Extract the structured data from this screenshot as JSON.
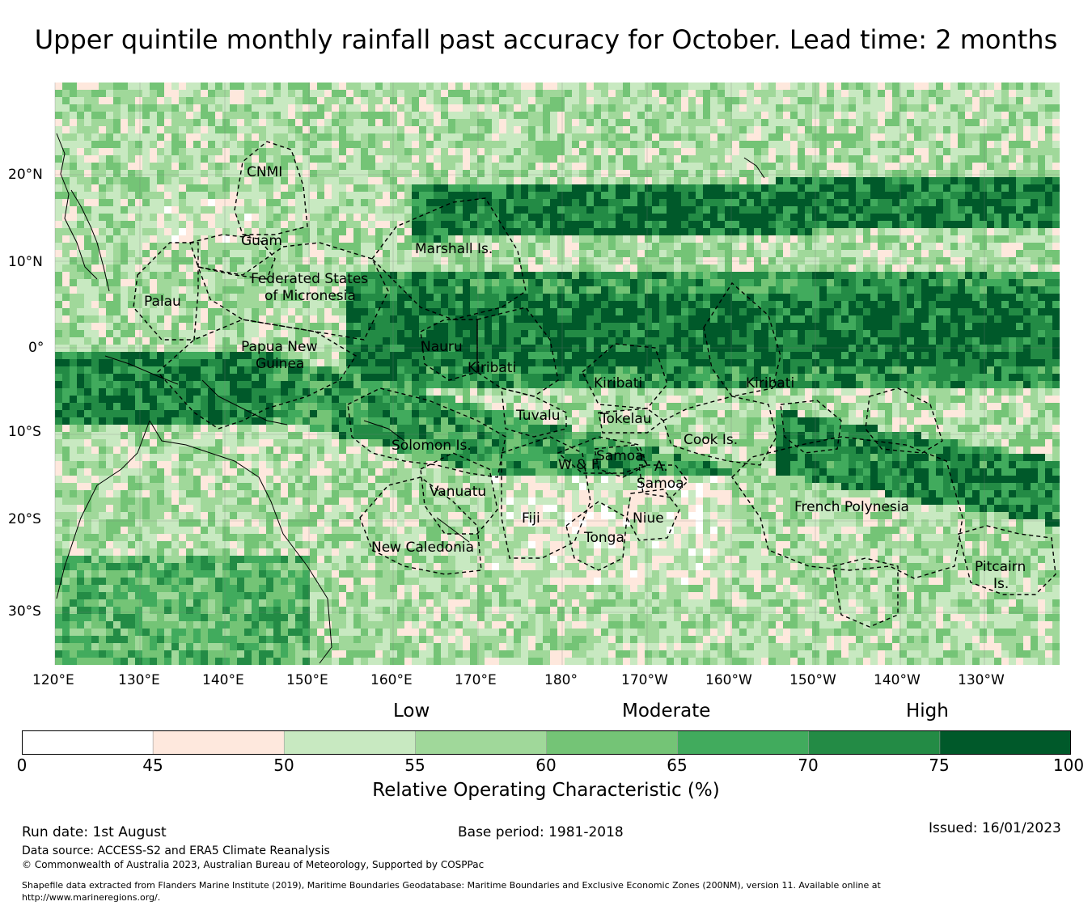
{
  "title": "Upper quintile monthly rainfall past accuracy for October. Lead time: 2 months",
  "map": {
    "lon_ticks": [
      "120°E",
      "130°E",
      "140°E",
      "150°E",
      "160°E",
      "170°E",
      "180°",
      "170°W",
      "160°W",
      "150°W",
      "140°W",
      "130°W"
    ],
    "lat_ticks": [
      "20°N",
      "10°N",
      "0°",
      "10°S",
      "20°S",
      "30°S"
    ],
    "regions": [
      "CNMI",
      "Guam",
      "Marshall Is.",
      "Federated States",
      "of Micronesia",
      "Palau",
      "Papua New",
      "Guinea",
      "Nauru",
      "Kiribati",
      "Kiribati",
      "Kiribati",
      "Tuvalu",
      "Tokelau",
      "Cook Is.",
      "Solomon Is.",
      "W & F",
      "Samoa",
      "A.",
      "Samoa",
      "Vanuatu",
      "Fiji",
      "Niue",
      "Tonga",
      "New Caledonia",
      "French Polynesia",
      "Pitcairn",
      "Is."
    ]
  },
  "colorbar": {
    "category_labels": [
      "Low",
      "Moderate",
      "High"
    ],
    "ticks": [
      "0",
      "45",
      "50",
      "55",
      "60",
      "65",
      "70",
      "75",
      "100"
    ],
    "colors": [
      "#ffffff",
      "#fee8dd",
      "#c8e9c1",
      "#a0d89a",
      "#74c476",
      "#41ab5d",
      "#238b45",
      "#00592a"
    ],
    "label": "Relative Operating Characteristic (%)"
  },
  "footer": {
    "run_date": "Run date: 1st August",
    "base_period": "Base period: 1981-2018",
    "issued": "Issued: 16/01/2023",
    "data_source": "Data source: ACCESS-S2 and ERA5 Climate Reanalysis",
    "copyright": "© Commonwealth of Australia 2023, Australian Bureau of Meteorology, Supported by COSPPac",
    "shapefile_1": "Shapefile data extracted from Flanders Marine Institute (2019), Maritime Boundaries Geodatabase: Maritime Boundaries and Exclusive Economic Zones (200NM), version 11. Available online at",
    "shapefile_2": "http://www.marineregions.org/."
  }
}
